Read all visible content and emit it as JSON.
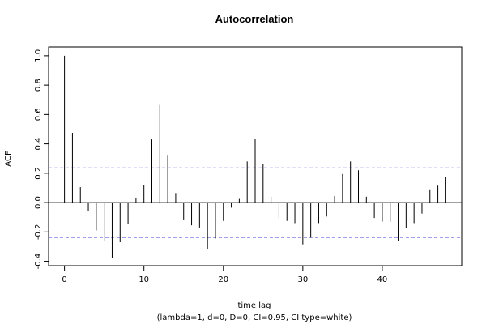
{
  "chart_data": {
    "type": "bar",
    "title": "Autocorrelation",
    "xlabel": "time lag",
    "subtitle": "(lambda=1, d=0, D=0, CI=0.95, CI type=white)",
    "ylabel": "ACF",
    "xlim": [
      -2,
      50
    ],
    "ylim": [
      -0.43,
      1.06
    ],
    "x_ticks": [
      "0",
      "10",
      "20",
      "30",
      "40"
    ],
    "y_ticks": [
      "-0.4",
      "-0.2",
      "0.0",
      "0.2",
      "0.4",
      "0.6",
      "0.8",
      "1.0"
    ],
    "ci_bounds": [
      0.236,
      -0.236
    ],
    "ci_color": "#0000cc",
    "bar_color": "#000000",
    "lags": [
      0,
      1,
      2,
      3,
      4,
      5,
      6,
      7,
      8,
      9,
      10,
      11,
      12,
      13,
      14,
      15,
      16,
      17,
      18,
      19,
      20,
      21,
      22,
      23,
      24,
      25,
      26,
      27,
      28,
      29,
      30,
      31,
      32,
      33,
      34,
      35,
      36,
      37,
      38,
      39,
      40,
      41,
      42,
      43,
      44,
      45,
      46,
      47,
      48
    ],
    "values": [
      1.0,
      0.475,
      0.105,
      -0.06,
      -0.19,
      -0.26,
      -0.375,
      -0.27,
      -0.145,
      0.03,
      0.12,
      0.43,
      0.665,
      0.325,
      0.065,
      -0.115,
      -0.155,
      -0.17,
      -0.315,
      -0.245,
      -0.125,
      -0.035,
      0.025,
      0.28,
      0.435,
      0.26,
      0.04,
      -0.105,
      -0.125,
      -0.14,
      -0.285,
      -0.24,
      -0.14,
      -0.095,
      0.045,
      0.195,
      0.28,
      0.22,
      0.04,
      -0.105,
      -0.13,
      -0.13,
      -0.26,
      -0.175,
      -0.14,
      -0.075,
      0.09,
      0.115,
      0.175
    ]
  }
}
